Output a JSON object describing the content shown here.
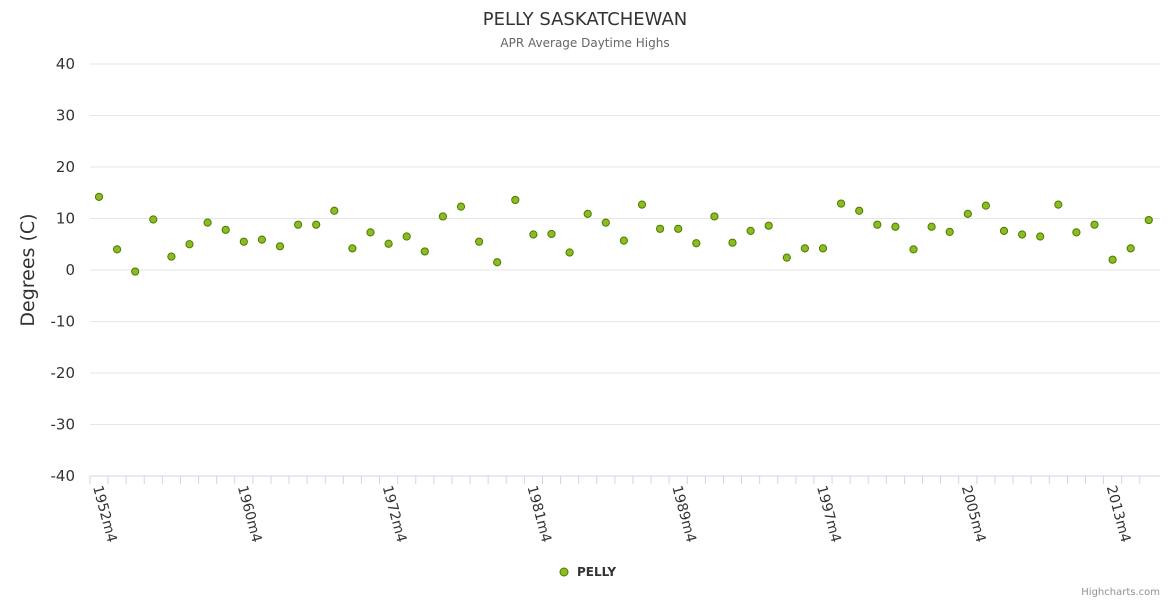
{
  "chart_data": {
    "type": "scatter",
    "title": "PELLY SASKATCHEWAN",
    "subtitle": "APR Average Daytime Highs",
    "ylabel": "Degrees (C)",
    "xlabel": "",
    "ylim": [
      -40,
      40
    ],
    "yticks": [
      40,
      30,
      20,
      10,
      0,
      -10,
      -20,
      -30,
      -40
    ],
    "x_start_year": 1952,
    "x_tick_labels": [
      {
        "label": "1952m4",
        "index": 0
      },
      {
        "label": "1960m4",
        "index": 8
      },
      {
        "label": "1972m4",
        "index": 16
      },
      {
        "label": "1981m4",
        "index": 24
      },
      {
        "label": "1989m4",
        "index": 32
      },
      {
        "label": "1997m4",
        "index": 40
      },
      {
        "label": "2005m4",
        "index": 48
      },
      {
        "label": "2013m4",
        "index": 56
      }
    ],
    "series": [
      {
        "name": "PELLY",
        "color": "#8bbc21",
        "values": [
          14.2,
          4.0,
          -0.3,
          9.8,
          2.6,
          5.0,
          9.2,
          7.8,
          5.5,
          5.9,
          4.6,
          8.8,
          8.8,
          11.5,
          4.2,
          7.3,
          5.1,
          6.5,
          3.6,
          10.4,
          12.3,
          5.5,
          1.5,
          13.6,
          6.9,
          7.0,
          3.4,
          10.9,
          9.2,
          5.7,
          12.7,
          8.0,
          8.0,
          5.2,
          10.4,
          5.3,
          7.6,
          8.6,
          2.4,
          4.2,
          4.2,
          12.9,
          11.5,
          8.8,
          8.4,
          4.0,
          8.4,
          7.4,
          10.9,
          12.5,
          7.6,
          6.9,
          6.5,
          12.7,
          7.3,
          8.8,
          2.0,
          4.2,
          9.7
        ]
      }
    ],
    "legend": {
      "items": [
        "PELLY"
      ],
      "position": "bottom-center"
    }
  },
  "credits": "Highcharts.com",
  "colors": {
    "series": "#8bbc21",
    "marker_stroke": "#4c7a00",
    "grid": "#e6e6e6",
    "axis": "#ccd6eb"
  }
}
